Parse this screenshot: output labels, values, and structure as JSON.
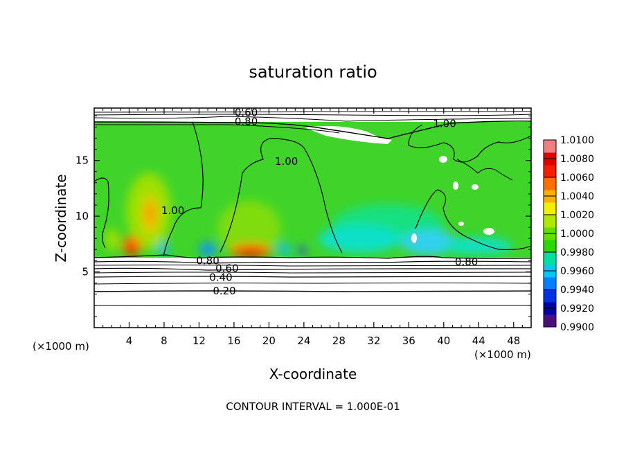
{
  "chart_data": {
    "type": "heatmap",
    "title": "saturation ratio",
    "xlabel": "X-coordinate",
    "ylabel": "Z-coordinate",
    "x_unit_left": "(×1000 m)",
    "x_unit_right": "(×1000 m)",
    "xlim": [
      0,
      50
    ],
    "ylim": [
      0,
      19.7
    ],
    "xticks": [
      4,
      8,
      12,
      16,
      20,
      24,
      28,
      32,
      36,
      40,
      44,
      48
    ],
    "yticks": [
      5,
      10,
      15
    ],
    "footer": "CONTOUR INTERVAL = 1.000E-01",
    "colorbar": {
      "min": 0.99,
      "max": 1.01,
      "tick_labels": [
        "1.0100",
        "1.0080",
        "1.0060",
        "1.0040",
        "1.0020",
        "1.0000",
        "0.9980",
        "0.9960",
        "0.9940",
        "0.9920",
        "0.9900"
      ],
      "colors": [
        "#4a0f7a",
        "#0000a8",
        "#0030e0",
        "#0080ff",
        "#00c8f0",
        "#00e0a0",
        "#28d800",
        "#60e000",
        "#b0e800",
        "#f0f000",
        "#ffb000",
        "#ff7000",
        "#f02000",
        "#e00000",
        "#f08080"
      ]
    },
    "contours": [
      {
        "label": "0.20",
        "z": 3.3,
        "label_x": 14.9
      },
      {
        "label": "0.40",
        "z": 4.5,
        "label_x": 14.5
      },
      {
        "label": "0.60",
        "z": 5.3,
        "label_x": 15.2
      },
      {
        "label": "0.80",
        "z": 6.0,
        "label_x": 13.0
      },
      {
        "label": "0.80",
        "z": 5.9,
        "label_x": 42.6
      },
      {
        "label": "1.00",
        "z": 10.5,
        "label_x": 9.0
      },
      {
        "label": "1.00",
        "z": 14.9,
        "label_x": 22.0
      },
      {
        "label": "1.00",
        "z": 18.3,
        "label_x": 40.1
      },
      {
        "label": "0.80",
        "z": 18.5,
        "label_x": 17.4
      },
      {
        "label": "0.60",
        "z": 19.3,
        "label_x": 17.4
      }
    ]
  }
}
